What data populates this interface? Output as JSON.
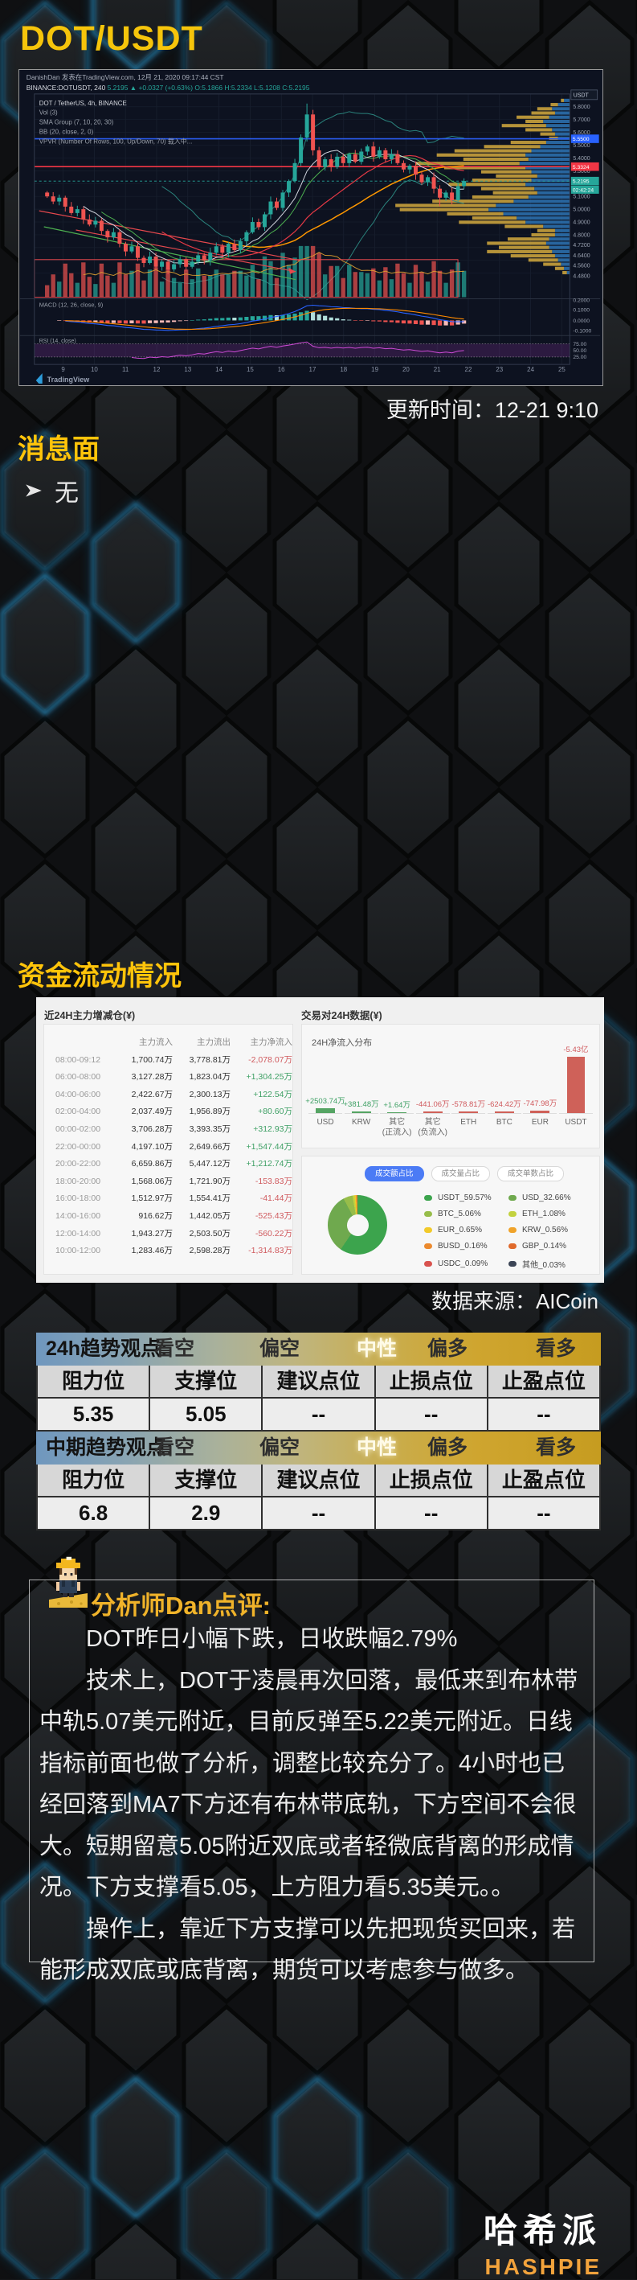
{
  "theme": {
    "accent_yellow": "#F6C50B",
    "up": "#26a69a",
    "down": "#ef5350",
    "profile_gold": "#c9a23c",
    "profile_blue": "#2e74b5",
    "level_blue": "#2a5cf0",
    "level_red": "#f23645"
  },
  "header": {
    "title": "DOT/USDT",
    "update_time": "更新时间：12-21 9:10"
  },
  "news": {
    "heading": "消息面",
    "items": [
      "无"
    ]
  },
  "chart": {
    "byline": "DanishDan 发表在TradingView.com, 12月 21, 2020 09:17:44 CST",
    "symbol_line": {
      "symbol": "BINANCE:DOTUSDT, 240",
      "price": "5.2195",
      "change": "▲ +0.0327 (+0.63%)",
      "ohlc": "O:5.1866 H:5.2334 L:5.1208 C:5.2195"
    },
    "legend": [
      "DOT / TetherUS, 4h, BINANCE",
      "Vol (3)",
      "SMA Group (7, 10, 20, 30)",
      "BB (20, close, 2, 0)",
      "VPVR (Number Of Rows, 100, Up/Down, 70) 载入中..."
    ],
    "axis_unit": "USDT",
    "price_labels": [
      [
        "5.8000",
        5.8
      ],
      [
        "5.7000",
        5.7
      ],
      [
        "5.6000",
        5.6
      ],
      [
        "5.5000",
        5.5
      ],
      [
        "5.4000",
        5.4
      ],
      [
        "5.3000",
        5.3
      ],
      [
        "5.1000",
        5.1
      ],
      [
        "5.0000",
        5.0
      ],
      [
        "4.9000",
        4.9
      ],
      [
        "4.8000",
        4.8
      ],
      [
        "4.7200",
        4.72
      ],
      [
        "4.6400",
        4.64
      ],
      [
        "4.5600",
        4.56
      ],
      [
        "4.4800",
        4.48
      ]
    ],
    "levels": {
      "blue": {
        "price": 5.55,
        "label": "5.5500"
      },
      "red": {
        "price": 5.3324,
        "label": "5.3324"
      },
      "last": {
        "price": 5.2195,
        "label": "5.2195",
        "countdown": "02:42:24"
      }
    },
    "dates": [
      "9",
      "10",
      "11",
      "12",
      "13",
      "14",
      "15",
      "16",
      "17",
      "18",
      "19",
      "20",
      "21",
      "22",
      "23",
      "24",
      "25"
    ],
    "macd": {
      "label": "MACD (12, 26, close, 9)",
      "axis": [
        "0.2000",
        "0.1000",
        "0.0000",
        "-0.1000"
      ]
    },
    "rsi": {
      "label": "RSI (14, close)",
      "axis": [
        "75.00",
        "50.00",
        "25.00"
      ]
    },
    "watermark": "TradingView",
    "closes": [
      5.1,
      5.06,
      5.09,
      5.02,
      4.97,
      5.0,
      4.92,
      4.88,
      4.91,
      4.83,
      4.78,
      4.82,
      4.73,
      4.67,
      4.71,
      4.62,
      4.58,
      4.63,
      4.55,
      4.59,
      4.53,
      4.57,
      4.61,
      4.55,
      4.59,
      4.64,
      4.6,
      4.66,
      4.71,
      4.66,
      4.73,
      4.68,
      4.75,
      4.82,
      4.9,
      4.86,
      4.96,
      5.06,
      5.01,
      5.13,
      5.22,
      5.36,
      5.56,
      5.74,
      5.46,
      5.33,
      5.39,
      5.33,
      5.41,
      5.36,
      5.43,
      5.37,
      5.45,
      5.49,
      5.41,
      5.46,
      5.39,
      5.43,
      5.36,
      5.31,
      5.34,
      5.27,
      5.21,
      5.25,
      5.16,
      5.09,
      5.13,
      5.07,
      5.18,
      5.22
    ],
    "profile": [
      [
        0.02,
        0.04
      ],
      [
        0.05,
        0.08
      ],
      [
        0.1,
        0.12
      ],
      [
        0.16,
        0.1
      ],
      [
        0.22,
        0.14
      ],
      [
        0.12,
        0.18
      ],
      [
        0.3,
        0.16
      ],
      [
        0.18,
        0.12
      ],
      [
        0.1,
        0.1
      ],
      [
        0.06,
        0.08
      ],
      [
        0.24,
        0.16
      ],
      [
        0.38,
        0.2
      ],
      [
        0.52,
        0.26
      ],
      [
        0.6,
        0.3
      ],
      [
        0.44,
        0.28
      ],
      [
        0.7,
        0.34
      ],
      [
        0.55,
        0.3
      ],
      [
        0.34,
        0.26
      ],
      [
        0.28,
        0.22
      ],
      [
        0.4,
        0.26
      ],
      [
        0.52,
        0.3
      ],
      [
        0.36,
        0.24
      ],
      [
        0.3,
        0.22
      ],
      [
        0.38,
        0.28
      ],
      [
        0.55,
        0.38
      ],
      [
        0.68,
        0.5
      ],
      [
        0.6,
        0.55
      ],
      [
        0.38,
        0.45
      ],
      [
        0.3,
        0.36
      ],
      [
        0.45,
        0.3
      ],
      [
        0.26,
        0.18
      ],
      [
        0.12,
        0.1
      ],
      [
        0.16,
        0.1
      ],
      [
        0.28,
        0.14
      ],
      [
        0.4,
        0.16
      ],
      [
        0.34,
        0.14
      ],
      [
        0.44,
        0.12
      ],
      [
        0.3,
        0.1
      ],
      [
        0.2,
        0.08
      ],
      [
        0.12,
        0.06
      ],
      [
        0.06,
        0.04
      ],
      [
        0.03,
        0.02
      ]
    ]
  },
  "funds": {
    "heading": "资金流动情况",
    "source": "数据来源：AICoin",
    "left": {
      "title": "近24H主力增减仓(¥)",
      "headers": [
        "主力流入",
        "主力流出",
        "主力净流入"
      ],
      "rows": [
        [
          "08:00-09:12",
          "1,700.74万",
          "3,778.81万",
          "-2,078.07万"
        ],
        [
          "06:00-08:00",
          "3,127.28万",
          "1,823.04万",
          "+1,304.25万"
        ],
        [
          "04:00-06:00",
          "2,422.67万",
          "2,300.13万",
          "+122.54万"
        ],
        [
          "02:00-04:00",
          "2,037.49万",
          "1,956.89万",
          "+80.60万"
        ],
        [
          "00:00-02:00",
          "3,706.28万",
          "3,393.35万",
          "+312.93万"
        ],
        [
          "22:00-00:00",
          "4,197.10万",
          "2,649.66万",
          "+1,547.44万"
        ],
        [
          "20:00-22:00",
          "6,659.86万",
          "5,447.12万",
          "+1,212.74万"
        ],
        [
          "18:00-20:00",
          "1,568.06万",
          "1,721.90万",
          "-153.83万"
        ],
        [
          "16:00-18:00",
          "1,512.97万",
          "1,554.41万",
          "-41.44万"
        ],
        [
          "14:00-16:00",
          "916.62万",
          "1,442.05万",
          "-525.43万"
        ],
        [
          "12:00-14:00",
          "1,943.27万",
          "2,503.50万",
          "-560.22万"
        ],
        [
          "10:00-12:00",
          "1,283.46万",
          "2,598.28万",
          "-1,314.83万"
        ]
      ]
    },
    "netflow": {
      "card_title": "交易对24H数据(¥)",
      "title": "24H净流入分布",
      "items": [
        {
          "label": "USD",
          "sub": "",
          "value": "+2503.74万",
          "pos": true,
          "h": 6,
          "w": 24
        },
        {
          "label": "KRW",
          "sub": "",
          "value": "+381.48万",
          "pos": true,
          "h": 2,
          "w": 24
        },
        {
          "label": "其它",
          "sub": "(正流入)",
          "value": "+1.64万",
          "pos": true,
          "h": 1,
          "w": 24
        },
        {
          "label": "其它",
          "sub": "(负流入)",
          "value": "-441.06万",
          "pos": false,
          "h": 2,
          "w": 24
        },
        {
          "label": "ETH",
          "sub": "",
          "value": "-578.81万",
          "pos": false,
          "h": 2,
          "w": 24
        },
        {
          "label": "BTC",
          "sub": "",
          "value": "-624.42万",
          "pos": false,
          "h": 2,
          "w": 24
        },
        {
          "label": "EUR",
          "sub": "",
          "value": "-747.98万",
          "pos": false,
          "h": 3,
          "w": 24
        },
        {
          "label": "USDT",
          "sub": "",
          "value": "-5.43亿",
          "pos": false,
          "h": 70,
          "w": 22
        }
      ]
    },
    "share": {
      "buttons": [
        {
          "label": "成交额占比",
          "active": true
        },
        {
          "label": "成交量占比",
          "active": false
        },
        {
          "label": "成交单数占比",
          "active": false
        }
      ],
      "slices": [
        {
          "label": "USDT_59.57%",
          "pct": 59.57,
          "color": "#3ca44d"
        },
        {
          "label": "USD_32.66%",
          "pct": 32.66,
          "color": "#6fa94e"
        },
        {
          "label": "BTC_5.06%",
          "pct": 5.06,
          "color": "#97bd4a"
        },
        {
          "label": "ETH_1.08%",
          "pct": 1.08,
          "color": "#c3d23f"
        },
        {
          "label": "EUR_0.65%",
          "pct": 0.65,
          "color": "#f2ca2a"
        },
        {
          "label": "KRW_0.56%",
          "pct": 0.56,
          "color": "#f0a32a"
        },
        {
          "label": "BUSD_0.16%",
          "pct": 0.16,
          "color": "#ec8a2e"
        },
        {
          "label": "GBP_0.14%",
          "pct": 0.14,
          "color": "#e06a2c"
        },
        {
          "label": "USDC_0.09%",
          "pct": 0.09,
          "color": "#d9534f"
        },
        {
          "label": "其他_0.03%",
          "pct": 0.03,
          "color": "#3c4556"
        }
      ]
    }
  },
  "views": {
    "scale": [
      "看空",
      "偏空",
      "中性",
      "偏多",
      "看多"
    ],
    "active": "中性",
    "col_headers": [
      "阻力位",
      "支撑位",
      "建议点位",
      "止损点位",
      "止盈点位"
    ],
    "tables": [
      {
        "title": "24h趋势观点:",
        "values": [
          "5.35",
          "5.05",
          "--",
          "--",
          "--"
        ]
      },
      {
        "title": "中期趋势观点:",
        "values": [
          "6.8",
          "2.9",
          "--",
          "--",
          "--"
        ]
      }
    ]
  },
  "analyst": {
    "title": "分析师Dan点评:",
    "paragraphs": [
      "DOT昨日小幅下跌，日收跌幅2.79%",
      "技术上，DOT于凌晨再次回落，最低来到布林带中轨5.07美元附近，目前反弹至5.22美元附近。日线指标前面也做了分析，调整比较充分了。4小时也已经回落到MA7下方还有布林带底轨，下方空间不会很大。短期留意5.05附近双底或者轻微底背离的形成情况。下方支撑看5.05，上方阻力看5.35美元。。",
      "操作上，靠近下方支撑可以先把现货买回来，若能形成双底或底背离，期货可以考虑参与做多。"
    ]
  },
  "footer": {
    "cn": "哈希派",
    "en": "HASHPIE"
  }
}
